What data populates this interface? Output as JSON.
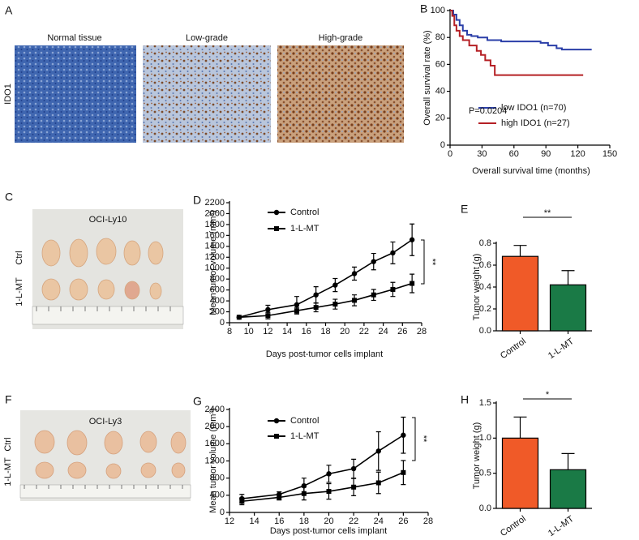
{
  "images": [
    {
      "panel_label": "A",
      "labels": [
        "Normal tissue",
        "Low-grade",
        "High-grade"
      ],
      "row_label": "IDO1"
    },
    {
      "panel_label": "C",
      "title": "OCI-Ly10",
      "row_labels": [
        "Ctrl",
        "1-L-MT"
      ]
    },
    {
      "panel_label": "F",
      "title": "OCI-Ly3",
      "row_labels": [
        "Ctrl",
        "1-L-MT"
      ]
    }
  ],
  "chart_data": [
    {
      "type": "line",
      "step": true,
      "panel_label": "B",
      "xlabel": "Overall survival time (months)",
      "ylabel": "Overall survival rate (%)",
      "xlim": [
        0,
        150
      ],
      "xticks": [
        0,
        30,
        60,
        90,
        120,
        150
      ],
      "ylim": [
        0,
        100
      ],
      "yticks": [
        0,
        20,
        40,
        60,
        80,
        100
      ],
      "legend": "lower right",
      "annotations": [
        "P=0.0204"
      ],
      "series": [
        {
          "name": "low IDO1  (n=70)",
          "color": "#2b3fa8",
          "x": [
            0,
            3,
            6,
            9,
            12,
            16,
            20,
            26,
            35,
            48,
            60,
            85,
            92,
            100,
            105,
            133
          ],
          "values": [
            100,
            97,
            93,
            89,
            85,
            82,
            81,
            80,
            78,
            77,
            77,
            76,
            74,
            72,
            71,
            71
          ]
        },
        {
          "name": "high IDO1 (n=27)",
          "color": "#b52025",
          "x": [
            0,
            2,
            4,
            6,
            9,
            12,
            18,
            25,
            29,
            33,
            38,
            42,
            125
          ],
          "values": [
            100,
            96,
            89,
            85,
            81,
            78,
            74,
            70,
            67,
            63,
            59,
            52,
            52
          ]
        }
      ]
    },
    {
      "type": "line",
      "panel_label": "D",
      "xlabel": "Days post-tumor cells implant",
      "ylabel": "Mean tumor volume (mm³)",
      "xlim": [
        8,
        28
      ],
      "xticks": [
        8,
        10,
        12,
        14,
        16,
        18,
        20,
        22,
        24,
        26,
        28
      ],
      "ylim": [
        0,
        2200
      ],
      "yticks": [
        0,
        200,
        400,
        600,
        800,
        1000,
        1200,
        1400,
        1600,
        1800,
        2000,
        2200
      ],
      "legend": "upper left",
      "annotations": [
        "**"
      ],
      "x": [
        9,
        12,
        15,
        17,
        19,
        21,
        23,
        25,
        27
      ],
      "series": [
        {
          "name": "Control",
          "color": "#000000",
          "marker": "circle",
          "values": [
            100,
            240,
            330,
            510,
            690,
            900,
            1120,
            1280,
            1520
          ],
          "errors": [
            0,
            80,
            150,
            150,
            120,
            120,
            150,
            200,
            290
          ]
        },
        {
          "name": "1-L-MT",
          "color": "#000000",
          "marker": "square",
          "values": [
            100,
            130,
            220,
            280,
            340,
            410,
            510,
            610,
            720
          ],
          "errors": [
            0,
            60,
            60,
            80,
            90,
            100,
            100,
            130,
            170
          ]
        }
      ]
    },
    {
      "type": "bar",
      "panel_label": "E",
      "ylabel": "Tumor weight (g)",
      "categories": [
        "Control",
        "1-L-MT"
      ],
      "values": [
        0.68,
        0.42
      ],
      "errors": [
        0.1,
        0.13
      ],
      "colors": [
        "#f05a28",
        "#1a7a46"
      ],
      "ylim": [
        0,
        0.8
      ],
      "yticks": [
        {
          "value": 0,
          "label": "0.0"
        },
        0.2,
        0.4,
        0.6,
        0.8
      ],
      "annotations": [
        "**"
      ]
    },
    {
      "type": "line",
      "panel_label": "G",
      "xlabel": "Days post-tumor cells implant",
      "ylabel": "Mean tumor volume (mm³)",
      "xlim": [
        12,
        28
      ],
      "xticks": [
        12,
        14,
        16,
        18,
        20,
        22,
        24,
        26,
        28
      ],
      "ylim": [
        0,
        2400
      ],
      "yticks": [
        0,
        400,
        800,
        1200,
        1600,
        2000,
        2400
      ],
      "legend": "upper left",
      "annotations": [
        "**"
      ],
      "x": [
        13,
        16,
        18,
        20,
        22,
        24,
        26
      ],
      "series": [
        {
          "name": "Control",
          "color": "#000000",
          "marker": "circle",
          "values": [
            320,
            420,
            620,
            900,
            1020,
            1430,
            1800
          ],
          "errors": [
            100,
            60,
            180,
            200,
            220,
            450,
            420
          ]
        },
        {
          "name": "1-L-MT",
          "color": "#000000",
          "marker": "square",
          "values": [
            260,
            350,
            440,
            490,
            590,
            690,
            930
          ],
          "errors": [
            80,
            60,
            150,
            180,
            200,
            250,
            280
          ]
        }
      ]
    },
    {
      "type": "bar",
      "panel_label": "H",
      "ylabel": "Tumor weight (g)",
      "categories": [
        "Control",
        "1-L-MT"
      ],
      "values": [
        1.0,
        0.55
      ],
      "errors": [
        0.3,
        0.23
      ],
      "colors": [
        "#f05a28",
        "#1a7a46"
      ],
      "ylim": [
        0,
        1.5
      ],
      "yticks": [
        {
          "value": 0,
          "label": "0.0"
        },
        0.5,
        {
          "value": 1,
          "label": "1.0"
        },
        1.5
      ],
      "annotations": [
        "*"
      ]
    }
  ]
}
